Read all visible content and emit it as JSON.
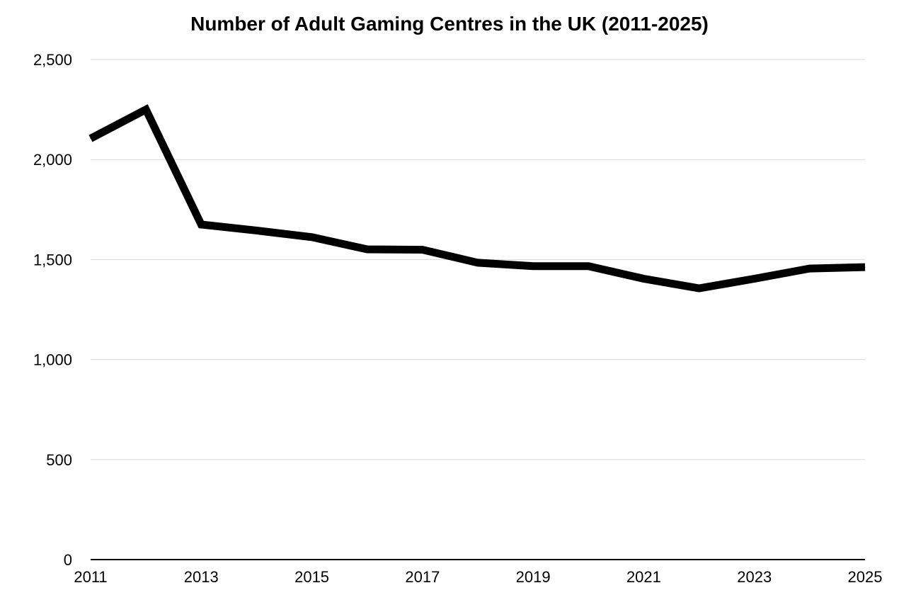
{
  "chart_data": {
    "type": "line",
    "title": "Number of Adult Gaming Centres in the UK (2011-2025)",
    "xlabel": "",
    "ylabel": "",
    "x": [
      2011,
      2012,
      2013,
      2014,
      2015,
      2016,
      2017,
      2018,
      2019,
      2020,
      2021,
      2022,
      2023,
      2024,
      2025
    ],
    "series": [
      {
        "values": [
          2105,
          2250,
          1675,
          1645,
          1612,
          1551,
          1549,
          1484,
          1467,
          1467,
          1404,
          1356,
          1404,
          1455,
          1462
        ]
      }
    ],
    "xlim": [
      2011,
      2025
    ],
    "ylim": [
      0,
      2500
    ],
    "x_ticks": [
      2011,
      2013,
      2015,
      2017,
      2019,
      2021,
      2023,
      2025
    ],
    "y_ticks": [
      0,
      500,
      1000,
      1500,
      2000,
      2500
    ],
    "x_tick_labels": [
      "2011",
      "2013",
      "2015",
      "2017",
      "2019",
      "2021",
      "2023",
      "2025"
    ],
    "y_tick_labels": [
      "0",
      "500",
      "1,000",
      "1,500",
      "2,000",
      "2,500"
    ],
    "grid": "horizontal",
    "legend": "none",
    "colors": {
      "line": "#000000",
      "grid": "#d9d9d9",
      "axis": "#000000",
      "background": "#ffffff"
    }
  }
}
